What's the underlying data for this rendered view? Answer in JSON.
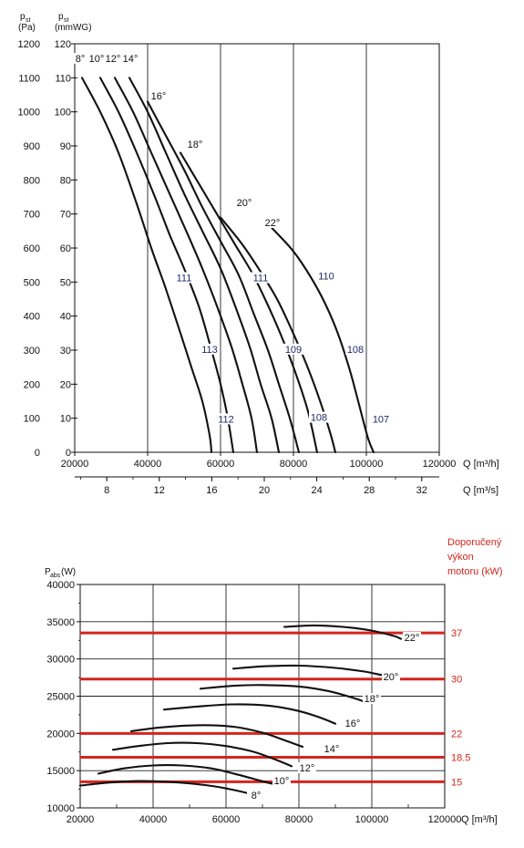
{
  "chart_data": [
    {
      "type": "line",
      "y_left_label": "p_st (Pa)",
      "y_left_label_main": "p",
      "y_left_label_sub": "st",
      "y_left_label_unit": "(Pa)",
      "y_right_label_main": "p",
      "y_right_label_sub": "st",
      "y_right_label_unit": "(mmWG)",
      "x_label": "Q [m³/h]",
      "x2_label": "Q [m³/s]",
      "x_ticks": [
        "20000",
        "40000",
        "60000",
        "80000",
        "100000",
        "120000"
      ],
      "x2_ticks": [
        "8",
        "12",
        "16",
        "20",
        "24",
        "28",
        "32"
      ],
      "y_pa_ticks": [
        "0",
        "100",
        "200",
        "300",
        "400",
        "500",
        "600",
        "700",
        "800",
        "900",
        "1000",
        "1100",
        "1200"
      ],
      "y_mm_ticks": [
        "0",
        "10",
        "20",
        "30",
        "40",
        "50",
        "60",
        "70",
        "80",
        "90",
        "100",
        "110",
        "120"
      ],
      "xlim": [
        20000,
        120000
      ],
      "ylim": [
        0,
        1200
      ],
      "grid": true,
      "series": [
        {
          "name": "8°",
          "points": [
            [
              22000,
              1100
            ],
            [
              27000,
              1000
            ],
            [
              32000,
              880
            ],
            [
              37000,
              730
            ],
            [
              41000,
              600
            ],
            [
              45000,
              480
            ],
            [
              49000,
              350
            ],
            [
              52000,
              250
            ],
            [
              55000,
              150
            ],
            [
              57000,
              50
            ],
            [
              57500,
              0
            ]
          ]
        },
        {
          "name": "10°",
          "points": [
            [
              27000,
              1100
            ],
            [
              32000,
              1000
            ],
            [
              37000,
              880
            ],
            [
              42000,
              750
            ],
            [
              46000,
              640
            ],
            [
              50000,
              540
            ],
            [
              54000,
              430
            ],
            [
              57000,
              320
            ],
            [
              60000,
              200
            ],
            [
              62000,
              100
            ],
            [
              63500,
              0
            ]
          ]
        },
        {
          "name": "12°",
          "points": [
            [
              31000,
              1100
            ],
            [
              36000,
              1000
            ],
            [
              41000,
              880
            ],
            [
              46000,
              760
            ],
            [
              51000,
              640
            ],
            [
              55000,
              540
            ],
            [
              59000,
              430
            ],
            [
              63000,
              310
            ],
            [
              66000,
              200
            ],
            [
              68500,
              100
            ],
            [
              70000,
              0
            ]
          ]
        },
        {
          "name": "14°",
          "points": [
            [
              35000,
              1100
            ],
            [
              40000,
              1000
            ],
            [
              45000,
              880
            ],
            [
              50000,
              760
            ],
            [
              55000,
              650
            ],
            [
              60000,
              540
            ],
            [
              64000,
              430
            ],
            [
              68000,
              310
            ],
            [
              71000,
              200
            ],
            [
              74000,
              100
            ],
            [
              76000,
              0
            ]
          ]
        },
        {
          "name": "16°",
          "points": [
            [
              40000,
              1030
            ],
            [
              45000,
              930
            ],
            [
              50000,
              830
            ],
            [
              55000,
              720
            ],
            [
              60000,
              620
            ],
            [
              65000,
              520
            ],
            [
              69000,
              410
            ],
            [
              73000,
              300
            ],
            [
              76000,
              200
            ],
            [
              79000,
              100
            ],
            [
              81500,
              0
            ]
          ]
        },
        {
          "name": "18°",
          "points": [
            [
              49000,
              880
            ],
            [
              54000,
              790
            ],
            [
              59000,
              700
            ],
            [
              64000,
              610
            ],
            [
              69000,
              520
            ],
            [
              73500,
              420
            ],
            [
              77500,
              320
            ],
            [
              81000,
              220
            ],
            [
              84000,
              120
            ],
            [
              86500,
              0
            ]
          ]
        },
        {
          "name": "20°",
          "points": [
            [
              60000,
              690
            ],
            [
              66000,
              610
            ],
            [
              71000,
              530
            ],
            [
              75500,
              450
            ],
            [
              79500,
              360
            ],
            [
              83500,
              260
            ],
            [
              87000,
              160
            ],
            [
              90000,
              60
            ],
            [
              91500,
              0
            ]
          ]
        },
        {
          "name": "22°",
          "points": [
            [
              74000,
              660
            ],
            [
              80000,
              590
            ],
            [
              85000,
              510
            ],
            [
              89000,
              430
            ],
            [
              92500,
              340
            ],
            [
              95500,
              240
            ],
            [
              98000,
              140
            ],
            [
              100500,
              40
            ],
            [
              102000,
              0
            ]
          ]
        }
      ],
      "angle_labels": [
        "8°",
        "10°",
        "12°",
        "14°",
        "16°",
        "18°",
        "20°",
        "22°"
      ],
      "efficiency_labels": [
        {
          "text": "111",
          "q": 50000,
          "p": 505
        },
        {
          "text": "113",
          "q": 57000,
          "p": 295
        },
        {
          "text": "112",
          "q": 61500,
          "p": 90
        },
        {
          "text": "111",
          "q": 71000,
          "p": 505
        },
        {
          "text": "109",
          "q": 80000,
          "p": 295
        },
        {
          "text": "108",
          "q": 87000,
          "p": 95
        },
        {
          "text": "110",
          "q": 89000,
          "p": 510
        },
        {
          "text": "108",
          "q": 97000,
          "p": 295
        },
        {
          "text": "107",
          "q": 104000,
          "p": 90
        }
      ]
    },
    {
      "type": "line",
      "y_label": "P_abs (W)",
      "y_label_main": "P",
      "y_label_sub": "abs",
      "y_label_unit": "(W)",
      "x_label": "Q [m³/h]",
      "x_ticks": [
        "20000",
        "40000",
        "60000",
        "80000",
        "100000",
        "120000"
      ],
      "y_ticks": [
        "10000",
        "15000",
        "20000",
        "25000",
        "30000",
        "35000",
        "40000"
      ],
      "xlim": [
        20000,
        120000
      ],
      "ylim": [
        10000,
        40000
      ],
      "grid": true,
      "right_title_lines": [
        "Doporučený",
        "výkon",
        "motoru (kW)"
      ],
      "motor_lines": [
        {
          "label": "37",
          "y": 33500
        },
        {
          "label": "30",
          "y": 27300
        },
        {
          "label": "22",
          "y": 20000
        },
        {
          "label": "18.5",
          "y": 16800
        },
        {
          "label": "15",
          "y": 13500
        }
      ],
      "series": [
        {
          "name": "8°",
          "points": [
            [
              20000,
              13000
            ],
            [
              28000,
              13400
            ],
            [
              36000,
              13600
            ],
            [
              44000,
              13500
            ],
            [
              52000,
              13200
            ],
            [
              58000,
              12800
            ],
            [
              64000,
              12200
            ],
            [
              68000,
              11700
            ]
          ]
        },
        {
          "name": "10°",
          "points": [
            [
              25000,
              14600
            ],
            [
              32000,
              15300
            ],
            [
              40000,
              15700
            ],
            [
              48000,
              15700
            ],
            [
              56000,
              15300
            ],
            [
              63000,
              14500
            ],
            [
              69000,
              13700
            ],
            [
              73000,
              13200
            ]
          ]
        },
        {
          "name": "12°",
          "points": [
            [
              29000,
              17800
            ],
            [
              36000,
              18300
            ],
            [
              44000,
              18700
            ],
            [
              52000,
              18700
            ],
            [
              60000,
              18300
            ],
            [
              67000,
              17600
            ],
            [
              73000,
              16600
            ],
            [
              78000,
              15600
            ]
          ]
        },
        {
          "name": "14°",
          "points": [
            [
              34000,
              20300
            ],
            [
              42000,
              20800
            ],
            [
              52000,
              21100
            ],
            [
              62000,
              20900
            ],
            [
              70000,
              20100
            ],
            [
              76000,
              19100
            ],
            [
              81000,
              18200
            ]
          ]
        },
        {
          "name": "16°",
          "points": [
            [
              43000,
              23200
            ],
            [
              52000,
              23600
            ],
            [
              62000,
              23900
            ],
            [
              72000,
              23700
            ],
            [
              80000,
              23000
            ],
            [
              86000,
              22100
            ],
            [
              90000,
              21300
            ]
          ]
        },
        {
          "name": "18°",
          "points": [
            [
              53000,
              26000
            ],
            [
              62000,
              26400
            ],
            [
              70000,
              26500
            ],
            [
              80000,
              26300
            ],
            [
              88000,
              25700
            ],
            [
              94000,
              24900
            ],
            [
              99000,
              24100
            ]
          ]
        },
        {
          "name": "20°",
          "points": [
            [
              62000,
              28700
            ],
            [
              70000,
              29000
            ],
            [
              80000,
              29100
            ],
            [
              90000,
              28800
            ],
            [
              98000,
              28300
            ],
            [
              103000,
              27800
            ]
          ]
        },
        {
          "name": "22°",
          "points": [
            [
              76000,
              34300
            ],
            [
              84000,
              34500
            ],
            [
              92000,
              34300
            ],
            [
              100000,
              33800
            ],
            [
              106000,
              33100
            ],
            [
              108000,
              32700
            ]
          ]
        }
      ],
      "angle_labels": [
        "8°",
        "10°",
        "12°",
        "14°",
        "16°",
        "18°",
        "20°",
        "22°"
      ]
    }
  ]
}
